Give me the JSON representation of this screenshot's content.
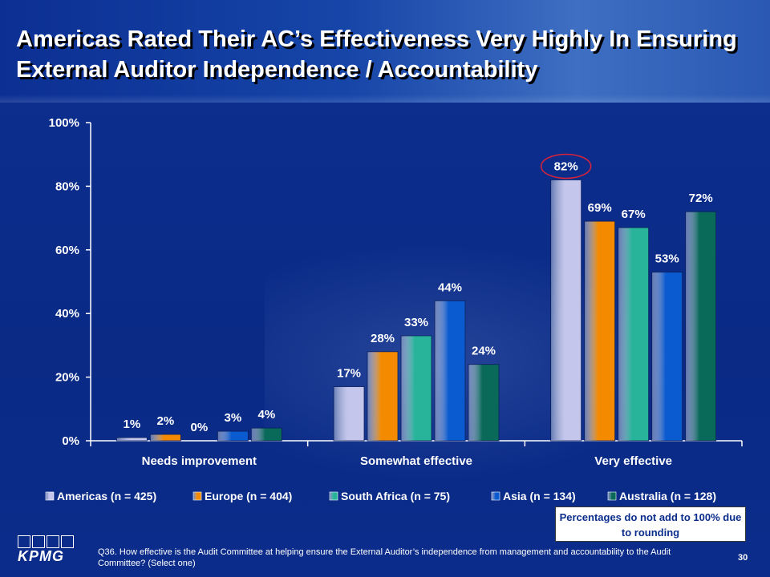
{
  "slide": {
    "title": "Americas Rated Their AC’s Effectiveness Very Highly In Ensuring External Auditor Independence / Accountability",
    "note": "Percentages do not add to 100% due to rounding",
    "footnote": "Q36. How effective is the Audit Committee at helping ensure the External Auditor’s independence from management and accountability to the Audit Committee? (Select one)",
    "page_number": "30",
    "logo_text": "KPMG"
  },
  "colors": {
    "background": "#0b2d8c",
    "americas": "#c4c6ec",
    "europe": "#f38a00",
    "south_africa": "#27b49a",
    "asia": "#0a5ad0",
    "australia": "#0a6a5a",
    "highlight_circle": "#d8233a"
  },
  "chart_data": {
    "type": "bar",
    "title": "",
    "xlabel": "",
    "ylabel": "",
    "ylim": [
      0,
      100
    ],
    "y_ticks": [
      0,
      20,
      40,
      60,
      80,
      100
    ],
    "y_tick_labels": [
      "0%",
      "20%",
      "40%",
      "60%",
      "80%",
      "100%"
    ],
    "categories": [
      "Needs improvement",
      "Somewhat effective",
      "Very effective"
    ],
    "series": [
      {
        "name": "Americas (n = 425)",
        "values": [
          1,
          17,
          82
        ],
        "labels": [
          "1%",
          "17%",
          "82%"
        ],
        "color": "#c4c6ec"
      },
      {
        "name": "Europe (n = 404)",
        "values": [
          2,
          28,
          69
        ],
        "labels": [
          "2%",
          "28%",
          "69%"
        ],
        "color": "#f38a00"
      },
      {
        "name": "South Africa (n = 75)",
        "values": [
          0,
          33,
          67
        ],
        "labels": [
          "0%",
          "33%",
          "67%"
        ],
        "color": "#27b49a"
      },
      {
        "name": "Asia (n = 134)",
        "values": [
          3,
          44,
          53
        ],
        "labels": [
          "3%",
          "44%",
          "53%"
        ],
        "color": "#0a5ad0"
      },
      {
        "name": "Australia (n = 128)",
        "values": [
          4,
          24,
          72
        ],
        "labels": [
          "4%",
          "24%",
          "72%"
        ],
        "color": "#0a6a5a"
      }
    ],
    "legend_position": "bottom",
    "grid": false,
    "highlight": {
      "series": 0,
      "category": 2
    }
  }
}
